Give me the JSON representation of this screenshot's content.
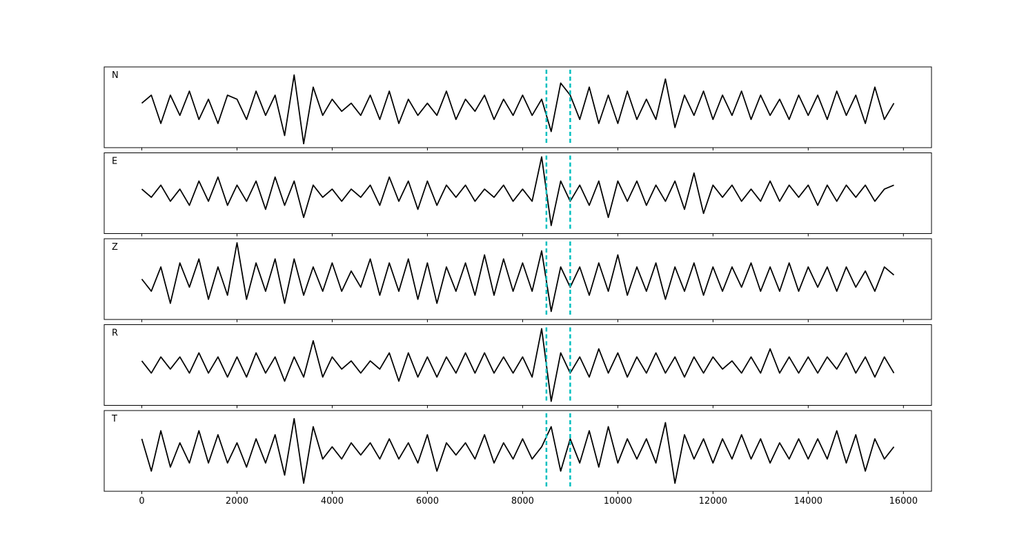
{
  "chart_data": {
    "type": "line",
    "x": [
      0,
      200,
      400,
      600,
      800,
      1000,
      1200,
      1400,
      1600,
      1800,
      2000,
      2200,
      2400,
      2600,
      2800,
      3000,
      3200,
      3400,
      3600,
      3800,
      4000,
      4200,
      4400,
      4600,
      4800,
      5000,
      5200,
      5400,
      5600,
      5800,
      6000,
      6200,
      6400,
      6600,
      6800,
      7000,
      7200,
      7400,
      7600,
      7800,
      8000,
      8200,
      8400,
      8600,
      8800,
      9000,
      9200,
      9400,
      9600,
      9800,
      10000,
      10200,
      10400,
      10600,
      10800,
      11000,
      11200,
      11400,
      11600,
      11800,
      12000,
      12200,
      12400,
      12600,
      12800,
      13000,
      13200,
      13400,
      13600,
      13800,
      14000,
      14200,
      14400,
      14600,
      14800,
      15000,
      15200,
      15400,
      15600,
      15800
    ],
    "xlim": [
      -790,
      16590
    ],
    "xticks": [
      0,
      2000,
      4000,
      6000,
      8000,
      10000,
      12000,
      14000,
      16000
    ],
    "ylim": [
      -1,
      1
    ],
    "vlines": {
      "values": [
        8500,
        9000
      ],
      "color": "#00bfbf"
    },
    "series": [
      {
        "name": "N",
        "color": "#000000",
        "values": [
          0.1,
          0.3,
          -0.4,
          0.3,
          -0.2,
          0.4,
          -0.3,
          0.2,
          -0.4,
          0.3,
          0.2,
          -0.3,
          0.4,
          -0.2,
          0.3,
          -0.7,
          0.8,
          -0.9,
          0.5,
          -0.2,
          0.2,
          -0.1,
          0.1,
          -0.2,
          0.3,
          -0.3,
          0.4,
          -0.4,
          0.2,
          -0.2,
          0.1,
          -0.2,
          0.4,
          -0.3,
          0.2,
          -0.1,
          0.3,
          -0.3,
          0.2,
          -0.2,
          0.3,
          -0.2,
          0.2,
          -0.6,
          0.6,
          0.3,
          -0.3,
          0.5,
          -0.4,
          0.3,
          -0.4,
          0.4,
          -0.3,
          0.2,
          -0.3,
          0.7,
          -0.5,
          0.3,
          -0.2,
          0.4,
          -0.3,
          0.3,
          -0.2,
          0.4,
          -0.3,
          0.3,
          -0.2,
          0.2,
          -0.3,
          0.3,
          -0.2,
          0.3,
          -0.3,
          0.4,
          -0.2,
          0.3,
          -0.4,
          0.5,
          -0.3,
          0.1
        ]
      },
      {
        "name": "E",
        "color": "#000000",
        "values": [
          0.1,
          -0.1,
          0.2,
          -0.2,
          0.1,
          -0.3,
          0.3,
          -0.2,
          0.4,
          -0.3,
          0.2,
          -0.2,
          0.3,
          -0.4,
          0.4,
          -0.3,
          0.3,
          -0.6,
          0.2,
          -0.1,
          0.1,
          -0.2,
          0.1,
          -0.1,
          0.2,
          -0.3,
          0.4,
          -0.2,
          0.3,
          -0.4,
          0.3,
          -0.3,
          0.2,
          -0.1,
          0.2,
          -0.2,
          0.1,
          -0.1,
          0.2,
          -0.2,
          0.1,
          -0.2,
          0.9,
          -0.8,
          0.3,
          -0.2,
          0.2,
          -0.3,
          0.3,
          -0.6,
          0.3,
          -0.2,
          0.3,
          -0.3,
          0.2,
          -0.2,
          0.3,
          -0.4,
          0.5,
          -0.5,
          0.2,
          -0.1,
          0.2,
          -0.2,
          0.1,
          -0.2,
          0.3,
          -0.2,
          0.2,
          -0.1,
          0.2,
          -0.3,
          0.2,
          -0.2,
          0.2,
          -0.1,
          0.2,
          -0.2,
          0.1,
          0.2
        ]
      },
      {
        "name": "Z",
        "color": "#000000",
        "values": [
          0.0,
          -0.3,
          0.3,
          -0.6,
          0.4,
          -0.2,
          0.5,
          -0.5,
          0.3,
          -0.4,
          0.9,
          -0.5,
          0.4,
          -0.3,
          0.5,
          -0.6,
          0.5,
          -0.4,
          0.3,
          -0.3,
          0.4,
          -0.3,
          0.2,
          -0.2,
          0.5,
          -0.4,
          0.4,
          -0.3,
          0.5,
          -0.5,
          0.4,
          -0.6,
          0.3,
          -0.3,
          0.4,
          -0.4,
          0.6,
          -0.4,
          0.5,
          -0.3,
          0.4,
          -0.3,
          0.7,
          -0.8,
          0.3,
          -0.2,
          0.3,
          -0.4,
          0.4,
          -0.3,
          0.6,
          -0.4,
          0.3,
          -0.3,
          0.4,
          -0.5,
          0.3,
          -0.3,
          0.4,
          -0.4,
          0.3,
          -0.3,
          0.3,
          -0.2,
          0.4,
          -0.3,
          0.3,
          -0.3,
          0.4,
          -0.3,
          0.3,
          -0.2,
          0.3,
          -0.3,
          0.3,
          -0.2,
          0.2,
          -0.3,
          0.3,
          0.1
        ]
      },
      {
        "name": "R",
        "color": "#000000",
        "values": [
          0.1,
          -0.2,
          0.2,
          -0.1,
          0.2,
          -0.2,
          0.3,
          -0.2,
          0.2,
          -0.3,
          0.2,
          -0.3,
          0.3,
          -0.2,
          0.2,
          -0.4,
          0.2,
          -0.3,
          0.6,
          -0.3,
          0.2,
          -0.1,
          0.1,
          -0.2,
          0.1,
          -0.1,
          0.3,
          -0.4,
          0.3,
          -0.3,
          0.2,
          -0.3,
          0.2,
          -0.2,
          0.3,
          -0.2,
          0.3,
          -0.2,
          0.2,
          -0.2,
          0.2,
          -0.3,
          0.9,
          -0.9,
          0.3,
          -0.2,
          0.2,
          -0.3,
          0.4,
          -0.2,
          0.3,
          -0.3,
          0.2,
          -0.2,
          0.3,
          -0.2,
          0.2,
          -0.3,
          0.2,
          -0.2,
          0.2,
          -0.1,
          0.1,
          -0.2,
          0.2,
          -0.2,
          0.4,
          -0.2,
          0.2,
          -0.2,
          0.2,
          -0.2,
          0.2,
          -0.1,
          0.3,
          -0.2,
          0.2,
          -0.3,
          0.2,
          -0.2
        ]
      },
      {
        "name": "T",
        "color": "#000000",
        "values": [
          0.3,
          -0.5,
          0.5,
          -0.4,
          0.2,
          -0.3,
          0.5,
          -0.3,
          0.4,
          -0.3,
          0.2,
          -0.4,
          0.3,
          -0.3,
          0.4,
          -0.6,
          0.8,
          -0.8,
          0.6,
          -0.2,
          0.1,
          -0.2,
          0.2,
          -0.1,
          0.2,
          -0.2,
          0.3,
          -0.2,
          0.2,
          -0.3,
          0.4,
          -0.5,
          0.2,
          -0.1,
          0.2,
          -0.2,
          0.4,
          -0.3,
          0.2,
          -0.2,
          0.3,
          -0.2,
          0.1,
          0.6,
          -0.5,
          0.3,
          -0.3,
          0.5,
          -0.4,
          0.6,
          -0.3,
          0.3,
          -0.2,
          0.3,
          -0.3,
          0.7,
          -0.8,
          0.4,
          -0.2,
          0.3,
          -0.3,
          0.3,
          -0.2,
          0.4,
          -0.2,
          0.3,
          -0.3,
          0.2,
          -0.2,
          0.3,
          -0.2,
          0.3,
          -0.2,
          0.5,
          -0.3,
          0.4,
          -0.5,
          0.3,
          -0.2,
          0.1
        ]
      }
    ]
  }
}
